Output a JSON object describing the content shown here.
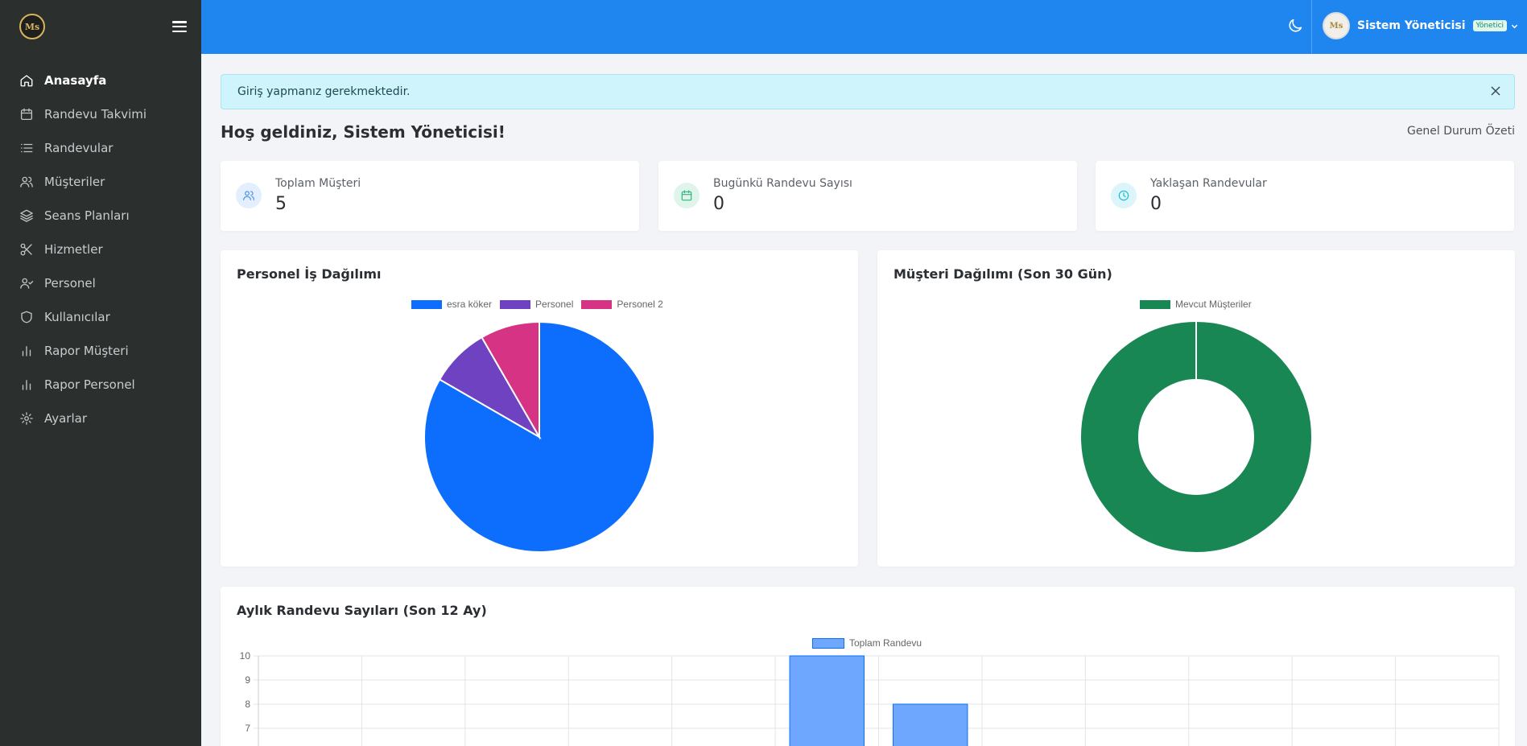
{
  "sidebar": {
    "logo_text": "Ms",
    "items": [
      {
        "label": "Anasayfa",
        "icon": "home-icon",
        "active": true
      },
      {
        "label": "Randevu Takvimi",
        "icon": "calendar-icon"
      },
      {
        "label": "Randevular",
        "icon": "list-icon"
      },
      {
        "label": "Müşteriler",
        "icon": "users-icon"
      },
      {
        "label": "Seans Planları",
        "icon": "layers-icon"
      },
      {
        "label": "Hizmetler",
        "icon": "scissors-icon"
      },
      {
        "label": "Personel",
        "icon": "user-check-icon"
      },
      {
        "label": "Kullanıcılar",
        "icon": "shield-icon"
      },
      {
        "label": "Rapor Müşteri",
        "icon": "bar-chart-icon"
      },
      {
        "label": "Rapor Personel",
        "icon": "bar-chart-icon"
      },
      {
        "label": "Ayarlar",
        "icon": "gear-icon"
      }
    ]
  },
  "header": {
    "user_name": "Sistem Yöneticisi",
    "role_badge": "Yönetici",
    "avatar_text": "Ms"
  },
  "alert": {
    "message": "Giriş yapmanız gerekmektedir."
  },
  "welcome": "Hoş geldiniz, Sistem Yöneticisi!",
  "summary_label": "Genel Durum Özeti",
  "stats": [
    {
      "label": "Toplam Müşteri",
      "value": "5",
      "icon": "users-icon",
      "color": "#4a90e2",
      "bg": "#e3effc"
    },
    {
      "label": "Bugünkü Randevu Sayısı",
      "value": "0",
      "icon": "calendar-icon",
      "color": "#2fb57c",
      "bg": "#dff5ec"
    },
    {
      "label": "Yaklaşan Randevular",
      "value": "0",
      "icon": "clock-icon",
      "color": "#1fb8d6",
      "bg": "#dcf5fa"
    }
  ],
  "panels": {
    "staff": {
      "title": "Personel İş Dağılımı"
    },
    "customers": {
      "title": "Müşteri Dağılımı (Son 30 Gün)"
    },
    "monthly": {
      "title": "Aylık Randevu Sayıları (Son 12 Ay)"
    }
  },
  "chart_data": [
    {
      "type": "pie",
      "title": "Personel İş Dağılımı",
      "labels": [
        "esra köker",
        "Personel",
        "Personel 2"
      ],
      "values": [
        10,
        1,
        1
      ],
      "colors": [
        "#0d6efd",
        "#6f42c1",
        "#d63384"
      ]
    },
    {
      "type": "pie",
      "subtype": "doughnut",
      "title": "Müşteri Dağılımı (Son 30 Gün)",
      "labels": [
        "Mevcut Müşteriler"
      ],
      "values": [
        5
      ],
      "colors": [
        "#198754"
      ]
    },
    {
      "type": "bar",
      "title": "Aylık Randevu Sayıları (Son 12 Ay)",
      "series": [
        {
          "name": "Toplam Randevu",
          "values": [
            0,
            0,
            0,
            0,
            0,
            10,
            8,
            0,
            0,
            0,
            0,
            0
          ]
        }
      ],
      "ylim_visible": [
        7,
        10
      ],
      "yticks_visible": [
        10,
        9,
        8,
        7
      ],
      "color": "#6ea8fe",
      "border_color": "#0d6efd",
      "grid": true
    }
  ]
}
